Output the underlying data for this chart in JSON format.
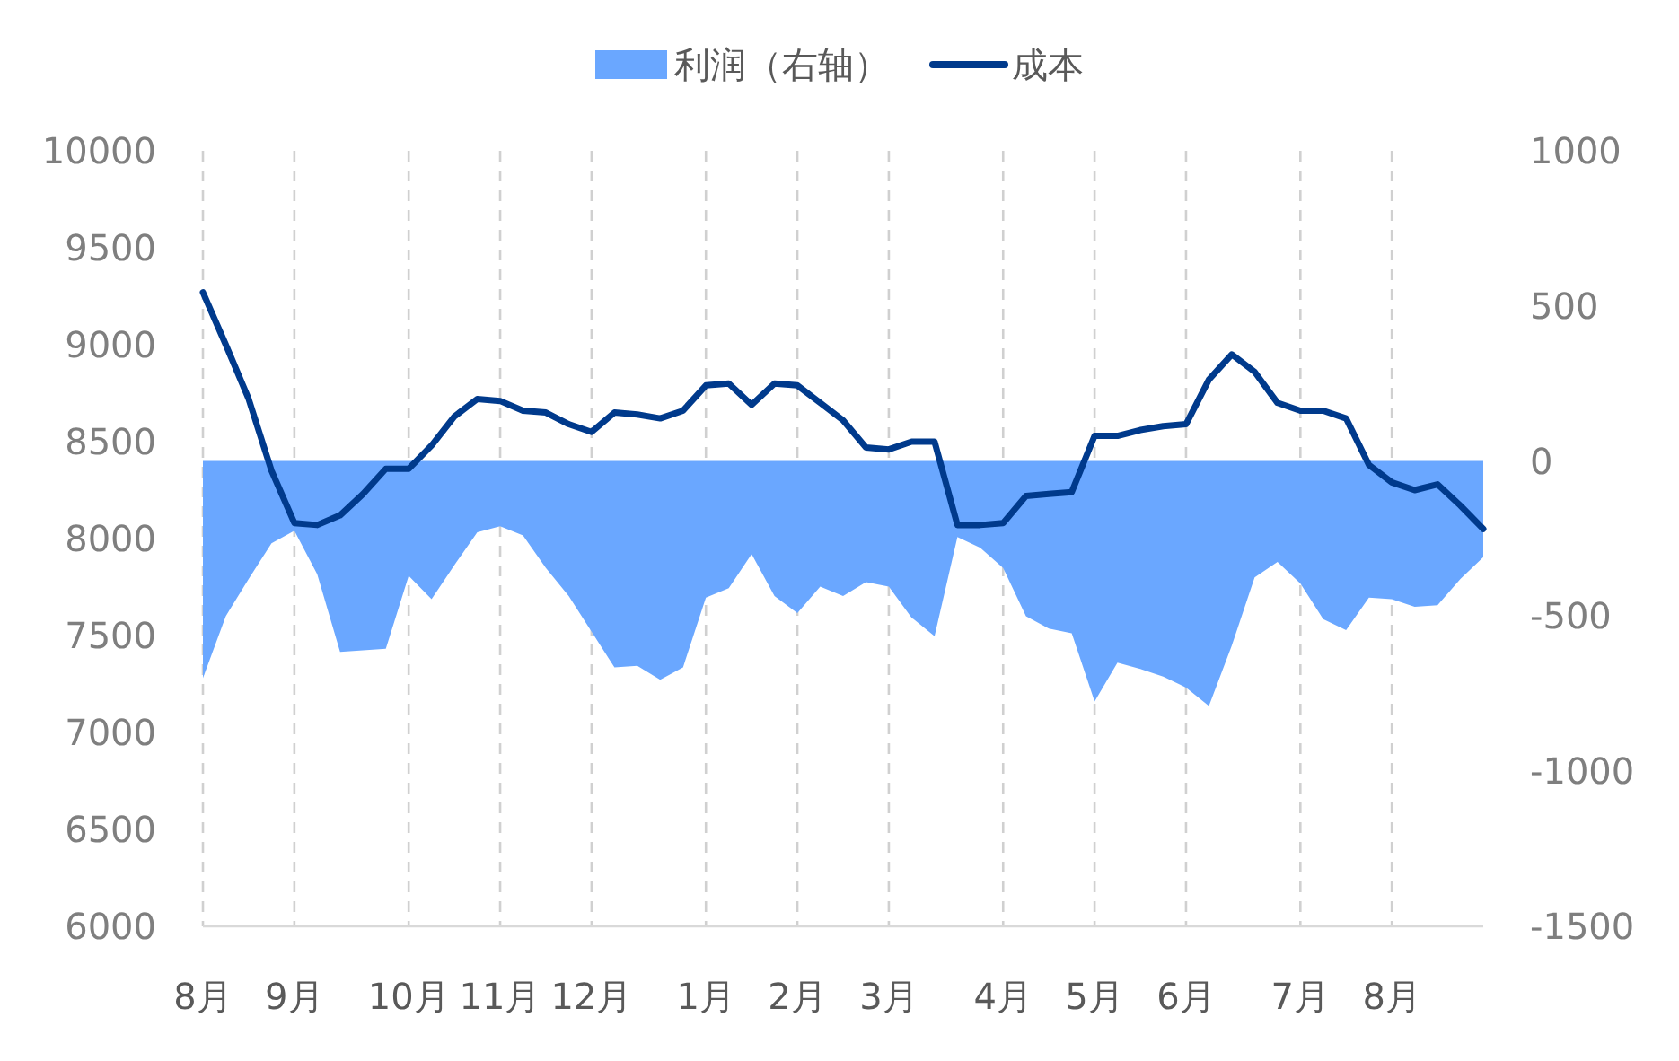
{
  "chart_data": {
    "type": "line",
    "categories": [
      "8月",
      null,
      null,
      null,
      "9月",
      null,
      null,
      null,
      null,
      "10月",
      null,
      null,
      null,
      "11月",
      null,
      null,
      null,
      "12月",
      null,
      null,
      null,
      null,
      "1月",
      null,
      null,
      null,
      "2月",
      null,
      null,
      null,
      "3月",
      null,
      null,
      null,
      null,
      "4月",
      null,
      null,
      null,
      "5月",
      null,
      null,
      null,
      "6月",
      null,
      null,
      null,
      null,
      "7月",
      null,
      null,
      null,
      "8月",
      null,
      null,
      null,
      null
    ],
    "series": [
      {
        "name": "利润（右轴）",
        "type": "area",
        "axis": "y2",
        "color": "#6aa7ff",
        "values": [
          -700,
          -500,
          -380,
          -265,
          -225,
          -365,
          -615,
          -610,
          -605,
          -370,
          -445,
          -335,
          -230,
          -210,
          -240,
          -345,
          -435,
          -550,
          -665,
          -660,
          -705,
          -665,
          -440,
          -410,
          -300,
          -435,
          -490,
          -405,
          -435,
          -390,
          -405,
          -505,
          -565,
          -245,
          -280,
          -345,
          -500,
          -540,
          -555,
          -775,
          -650,
          -670,
          -695,
          -730,
          -790,
          -595,
          -375,
          -325,
          -395,
          -510,
          -545,
          -440,
          -445,
          -470,
          -465,
          -380,
          -310
        ]
      },
      {
        "name": "成本",
        "color": "#003a8c",
        "values": [
          9270,
          9000,
          8720,
          8350,
          8080,
          8070,
          8120,
          8230,
          8360,
          8360,
          8480,
          8630,
          8720,
          8710,
          8660,
          8650,
          8590,
          8550,
          8650,
          8640,
          8620,
          8660,
          8790,
          8800,
          8690,
          8800,
          8790,
          8700,
          8610,
          8470,
          8460,
          8500,
          8500,
          8070,
          8070,
          8080,
          8220,
          8230,
          8240,
          8530,
          8530,
          8560,
          8580,
          8590,
          8820,
          8950,
          8860,
          8700,
          8660,
          8660,
          8620,
          8380,
          8290,
          8250,
          8280,
          8170,
          8050
        ]
      }
    ],
    "ylim": [
      6000,
      10000
    ],
    "yticks": [
      6000,
      6500,
      7000,
      7500,
      8000,
      8500,
      9000,
      9500,
      10000
    ],
    "y2lim": [
      -1500,
      1000
    ],
    "y2ticks": [
      -1500,
      -1000,
      -500,
      0,
      500,
      1000
    ],
    "grid": "x",
    "legend": "top"
  }
}
